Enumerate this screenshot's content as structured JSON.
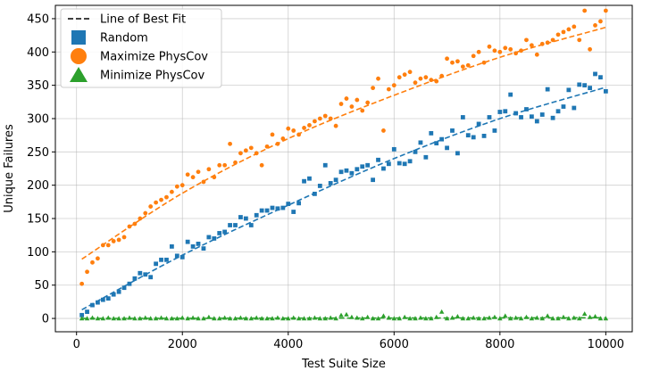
{
  "chart_data": {
    "type": "scatter",
    "xlabel": "Test Suite Size",
    "ylabel": "Unique Failures",
    "xlim": [
      -400,
      10500
    ],
    "ylim": [
      -20,
      470
    ],
    "xticks": [
      0,
      2000,
      4000,
      6000,
      8000,
      10000
    ],
    "yticks": [
      0,
      50,
      100,
      150,
      200,
      250,
      300,
      350,
      400,
      450
    ],
    "grid": true,
    "legend_position": "upper-left",
    "legend": [
      {
        "label": "Line of Best Fit",
        "marker": "dashed-line",
        "color": "#000000"
      },
      {
        "label": "Random",
        "marker": "square",
        "color": "#1f77b4"
      },
      {
        "label": "Maximize PhysCov",
        "marker": "circle",
        "color": "#ff7f0e"
      },
      {
        "label": "Minimize PhysCov",
        "marker": "triangle",
        "color": "#2ca02c"
      }
    ],
    "x": [
      100,
      200,
      300,
      400,
      500,
      600,
      700,
      800,
      900,
      1000,
      1100,
      1200,
      1300,
      1400,
      1500,
      1600,
      1700,
      1800,
      1900,
      2000,
      2100,
      2200,
      2300,
      2400,
      2500,
      2600,
      2700,
      2800,
      2900,
      3000,
      3100,
      3200,
      3300,
      3400,
      3500,
      3600,
      3700,
      3800,
      3900,
      4000,
      4100,
      4200,
      4300,
      4400,
      4500,
      4600,
      4700,
      4800,
      4900,
      5000,
      5100,
      5200,
      5300,
      5400,
      5500,
      5600,
      5700,
      5800,
      5900,
      6000,
      6100,
      6200,
      6300,
      6400,
      6500,
      6600,
      6700,
      6800,
      6900,
      7000,
      7100,
      7200,
      7300,
      7400,
      7500,
      7600,
      7700,
      7800,
      7900,
      8000,
      8100,
      8200,
      8300,
      8400,
      8500,
      8600,
      8700,
      8800,
      8900,
      9000,
      9100,
      9200,
      9300,
      9400,
      9500,
      9600,
      9700,
      9800,
      9900,
      10000
    ],
    "series": [
      {
        "name": "Random",
        "color": "#1f77b4",
        "marker": "square",
        "values": [
          5,
          10,
          20,
          24,
          28,
          30,
          36,
          40,
          46,
          52,
          60,
          68,
          66,
          62,
          82,
          88,
          88,
          108,
          94,
          92,
          115,
          108,
          112,
          105,
          122,
          120,
          128,
          130,
          140,
          140,
          152,
          150,
          140,
          155,
          162,
          162,
          166,
          165,
          166,
          172,
          160,
          173,
          206,
          210,
          187,
          199,
          230,
          203,
          208,
          220,
          222,
          218,
          224,
          228,
          230,
          208,
          238,
          225,
          232,
          254,
          233,
          232,
          236,
          250,
          264,
          242,
          278,
          263,
          269,
          256,
          282,
          248,
          302,
          275,
          272,
          292,
          274,
          302,
          282,
          310,
          311,
          336,
          308,
          302,
          314,
          303,
          296,
          306,
          344,
          301,
          311,
          318,
          343,
          316,
          351,
          350,
          346,
          367,
          362,
          341
        ]
      },
      {
        "name": "Maximize PhysCov",
        "color": "#ff7f0e",
        "marker": "circle",
        "values": [
          52,
          70,
          84,
          90,
          110,
          110,
          116,
          118,
          122,
          138,
          142,
          150,
          158,
          168,
          174,
          178,
          182,
          190,
          198,
          200,
          216,
          212,
          220,
          205,
          224,
          212,
          230,
          230,
          262,
          234,
          248,
          252,
          256,
          248,
          230,
          258,
          276,
          262,
          270,
          285,
          282,
          276,
          286,
          290,
          296,
          300,
          304,
          300,
          289,
          322,
          330,
          318,
          328,
          312,
          324,
          346,
          360,
          282,
          344,
          350,
          362,
          366,
          370,
          354,
          360,
          362,
          358,
          356,
          364,
          390,
          384,
          386,
          378,
          380,
          394,
          400,
          384,
          408,
          402,
          400,
          406,
          404,
          398,
          402,
          418,
          410,
          396,
          412,
          414,
          418,
          426,
          430,
          434,
          438,
          418,
          462,
          404,
          440,
          446,
          462
        ]
      },
      {
        "name": "Minimize PhysCov",
        "color": "#2ca02c",
        "marker": "triangle",
        "values": [
          0,
          0,
          1,
          0,
          0,
          1,
          0,
          0,
          0,
          1,
          0,
          0,
          1,
          0,
          0,
          1,
          0,
          0,
          0,
          1,
          0,
          1,
          0,
          0,
          2,
          0,
          0,
          1,
          0,
          0,
          1,
          0,
          0,
          1,
          0,
          0,
          0,
          1,
          0,
          0,
          1,
          0,
          0,
          0,
          1,
          0,
          0,
          1,
          0,
          5,
          6,
          2,
          1,
          0,
          2,
          0,
          0,
          4,
          1,
          0,
          0,
          2,
          0,
          0,
          1,
          0,
          0,
          2,
          10,
          0,
          1,
          3,
          0,
          0,
          1,
          0,
          0,
          1,
          2,
          0,
          4,
          0,
          1,
          0,
          2,
          0,
          1,
          0,
          4,
          0,
          0,
          2,
          0,
          1,
          0,
          7,
          2,
          3,
          0,
          0
        ]
      }
    ],
    "fits": [
      {
        "name": "Random",
        "color": "#1f77b4",
        "x": [
          100,
          2000,
          4000,
          6000,
          8000,
          10000
        ],
        "y": [
          13,
          95,
          170,
          240,
          300,
          347
        ]
      },
      {
        "name": "Maximize PhysCov",
        "color": "#ff7f0e",
        "x": [
          100,
          2000,
          4000,
          6000,
          8000,
          10000
        ],
        "y": [
          89,
          188,
          270,
          335,
          392,
          437
        ]
      },
      {
        "name": "Minimize PhysCov",
        "color": "#2ca02c",
        "x": [
          100,
          10000
        ],
        "y": [
          0,
          1
        ]
      }
    ]
  }
}
